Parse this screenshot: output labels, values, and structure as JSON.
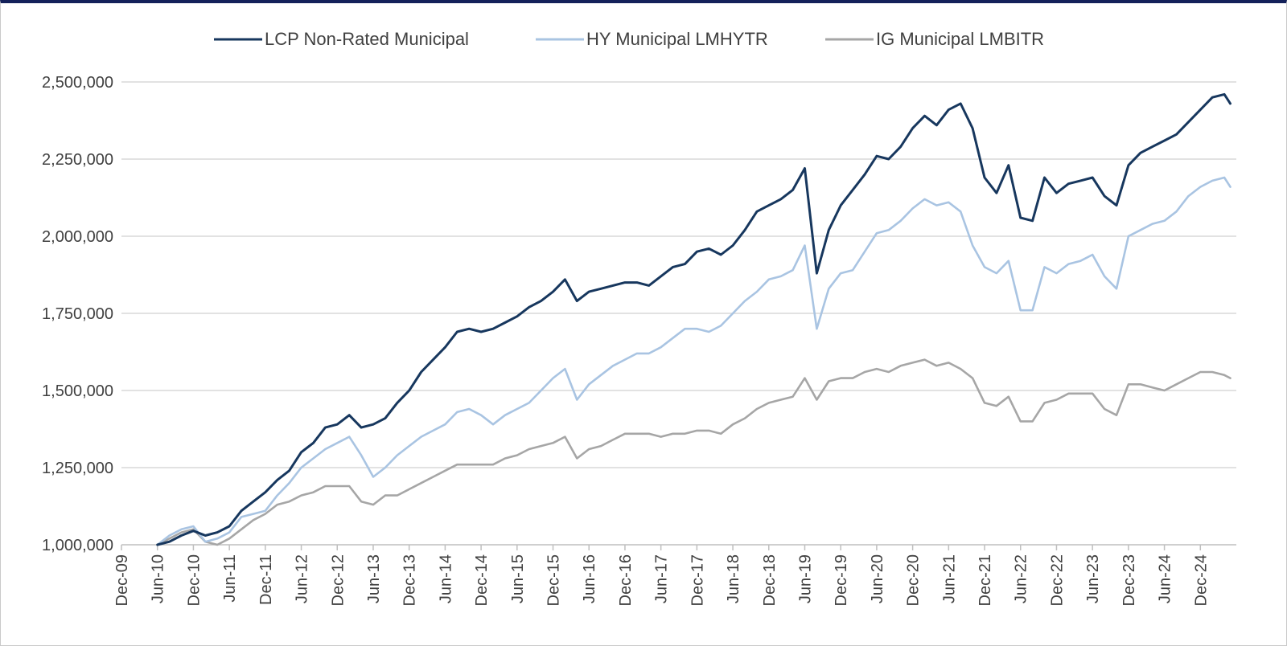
{
  "chart_data": {
    "type": "line",
    "title": "",
    "xlabel": "",
    "ylabel": "",
    "ylim": [
      1000000,
      2500000
    ],
    "y_ticks": [
      "1,000,000",
      "1,250,000",
      "1,500,000",
      "1,750,000",
      "2,000,000",
      "2,250,000",
      "2,500,000"
    ],
    "y_tick_values": [
      1000000,
      1250000,
      1500000,
      1750000,
      2000000,
      2250000,
      2500000
    ],
    "x_ticks": [
      "Dec-09",
      "Jun-10",
      "Dec-10",
      "Jun-11",
      "Dec-11",
      "Jun-12",
      "Dec-12",
      "Jun-13",
      "Dec-13",
      "Jun-14",
      "Dec-14",
      "Jun-15",
      "Dec-15",
      "Jun-16",
      "Dec-16",
      "Jun-17",
      "Dec-17",
      "Jun-18",
      "Dec-18",
      "Jun-19",
      "Dec-19",
      "Jun-20",
      "Dec-20",
      "Jun-21",
      "Dec-21",
      "Jun-22",
      "Dec-22",
      "Jun-23",
      "Dec-23",
      "Jun-24",
      "Dec-24"
    ],
    "x_range_months": [
      0,
      186
    ],
    "x_start": "Dec-09",
    "grid": true,
    "legend_position": "top-center",
    "series": [
      {
        "name": "LCP Non-Rated Municipal",
        "color": "#17375e",
        "x": [
          6,
          8,
          10,
          12,
          14,
          16,
          18,
          20,
          22,
          24,
          26,
          28,
          30,
          32,
          34,
          36,
          38,
          40,
          42,
          44,
          46,
          48,
          50,
          52,
          54,
          56,
          58,
          60,
          62,
          64,
          66,
          68,
          70,
          72,
          74,
          76,
          78,
          80,
          82,
          84,
          86,
          88,
          90,
          92,
          94,
          96,
          98,
          100,
          102,
          104,
          106,
          108,
          110,
          112,
          114,
          116,
          118,
          120,
          122,
          124,
          126,
          128,
          130,
          132,
          134,
          136,
          138,
          140,
          142,
          144,
          146,
          148,
          150,
          152,
          154,
          156,
          158,
          160,
          162,
          164,
          166,
          168,
          170,
          172,
          174,
          176,
          178,
          180,
          182,
          184,
          185
        ],
        "values": [
          1000000,
          1010000,
          1030000,
          1045000,
          1030000,
          1040000,
          1060000,
          1110000,
          1140000,
          1170000,
          1210000,
          1240000,
          1300000,
          1330000,
          1380000,
          1390000,
          1420000,
          1380000,
          1390000,
          1410000,
          1460000,
          1500000,
          1560000,
          1600000,
          1640000,
          1690000,
          1700000,
          1690000,
          1700000,
          1720000,
          1740000,
          1770000,
          1790000,
          1820000,
          1860000,
          1790000,
          1820000,
          1830000,
          1840000,
          1850000,
          1850000,
          1840000,
          1870000,
          1900000,
          1910000,
          1950000,
          1960000,
          1940000,
          1970000,
          2020000,
          2080000,
          2100000,
          2120000,
          2150000,
          2220000,
          1880000,
          2020000,
          2100000,
          2150000,
          2200000,
          2260000,
          2250000,
          2290000,
          2350000,
          2390000,
          2360000,
          2410000,
          2430000,
          2350000,
          2190000,
          2140000,
          2230000,
          2060000,
          2050000,
          2190000,
          2140000,
          2170000,
          2180000,
          2190000,
          2130000,
          2100000,
          2230000,
          2270000,
          2290000,
          2310000,
          2330000,
          2370000,
          2410000,
          2450000,
          2460000,
          2430000
        ]
      },
      {
        "name": "HY Municipal LMHYTR",
        "color": "#a9c4e2",
        "x": [
          6,
          8,
          10,
          12,
          14,
          16,
          18,
          20,
          22,
          24,
          26,
          28,
          30,
          32,
          34,
          36,
          38,
          40,
          42,
          44,
          46,
          48,
          50,
          52,
          54,
          56,
          58,
          60,
          62,
          64,
          66,
          68,
          70,
          72,
          74,
          76,
          78,
          80,
          82,
          84,
          86,
          88,
          90,
          92,
          94,
          96,
          98,
          100,
          102,
          104,
          106,
          108,
          110,
          112,
          114,
          116,
          118,
          120,
          122,
          124,
          126,
          128,
          130,
          132,
          134,
          136,
          138,
          140,
          142,
          144,
          146,
          148,
          150,
          152,
          154,
          156,
          158,
          160,
          162,
          164,
          166,
          168,
          170,
          172,
          174,
          176,
          178,
          180,
          182,
          184,
          185
        ],
        "values": [
          1000000,
          1030000,
          1050000,
          1060000,
          1010000,
          1020000,
          1040000,
          1090000,
          1100000,
          1110000,
          1160000,
          1200000,
          1250000,
          1280000,
          1310000,
          1330000,
          1350000,
          1290000,
          1220000,
          1250000,
          1290000,
          1320000,
          1350000,
          1370000,
          1390000,
          1430000,
          1440000,
          1420000,
          1390000,
          1420000,
          1440000,
          1460000,
          1500000,
          1540000,
          1570000,
          1470000,
          1520000,
          1550000,
          1580000,
          1600000,
          1620000,
          1620000,
          1640000,
          1670000,
          1700000,
          1700000,
          1690000,
          1710000,
          1750000,
          1790000,
          1820000,
          1860000,
          1870000,
          1890000,
          1970000,
          1700000,
          1830000,
          1880000,
          1890000,
          1950000,
          2010000,
          2020000,
          2050000,
          2090000,
          2120000,
          2100000,
          2110000,
          2080000,
          1970000,
          1900000,
          1880000,
          1920000,
          1760000,
          1760000,
          1900000,
          1880000,
          1910000,
          1920000,
          1940000,
          1870000,
          1830000,
          2000000,
          2020000,
          2040000,
          2050000,
          2080000,
          2130000,
          2160000,
          2180000,
          2190000,
          2160000
        ]
      },
      {
        "name": "IG Municipal LMBITR",
        "color": "#a6a6a6",
        "x": [
          6,
          8,
          10,
          12,
          14,
          16,
          18,
          20,
          22,
          24,
          26,
          28,
          30,
          32,
          34,
          36,
          38,
          40,
          42,
          44,
          46,
          48,
          50,
          52,
          54,
          56,
          58,
          60,
          62,
          64,
          66,
          68,
          70,
          72,
          74,
          76,
          78,
          80,
          82,
          84,
          86,
          88,
          90,
          92,
          94,
          96,
          98,
          100,
          102,
          104,
          106,
          108,
          110,
          112,
          114,
          116,
          118,
          120,
          122,
          124,
          126,
          128,
          130,
          132,
          134,
          136,
          138,
          140,
          142,
          144,
          146,
          148,
          150,
          152,
          154,
          156,
          158,
          160,
          162,
          164,
          166,
          168,
          170,
          172,
          174,
          176,
          178,
          180,
          182,
          184,
          185
        ],
        "values": [
          1000000,
          1020000,
          1040000,
          1050000,
          1010000,
          1000000,
          1020000,
          1050000,
          1080000,
          1100000,
          1130000,
          1140000,
          1160000,
          1170000,
          1190000,
          1190000,
          1190000,
          1140000,
          1130000,
          1160000,
          1160000,
          1180000,
          1200000,
          1220000,
          1240000,
          1260000,
          1260000,
          1260000,
          1260000,
          1280000,
          1290000,
          1310000,
          1320000,
          1330000,
          1350000,
          1280000,
          1310000,
          1320000,
          1340000,
          1360000,
          1360000,
          1360000,
          1350000,
          1360000,
          1360000,
          1370000,
          1370000,
          1360000,
          1390000,
          1410000,
          1440000,
          1460000,
          1470000,
          1480000,
          1540000,
          1470000,
          1530000,
          1540000,
          1540000,
          1560000,
          1570000,
          1560000,
          1580000,
          1590000,
          1600000,
          1580000,
          1590000,
          1570000,
          1540000,
          1460000,
          1450000,
          1480000,
          1400000,
          1400000,
          1460000,
          1470000,
          1490000,
          1490000,
          1490000,
          1440000,
          1420000,
          1520000,
          1520000,
          1510000,
          1500000,
          1520000,
          1540000,
          1560000,
          1560000,
          1550000,
          1540000
        ]
      }
    ]
  }
}
